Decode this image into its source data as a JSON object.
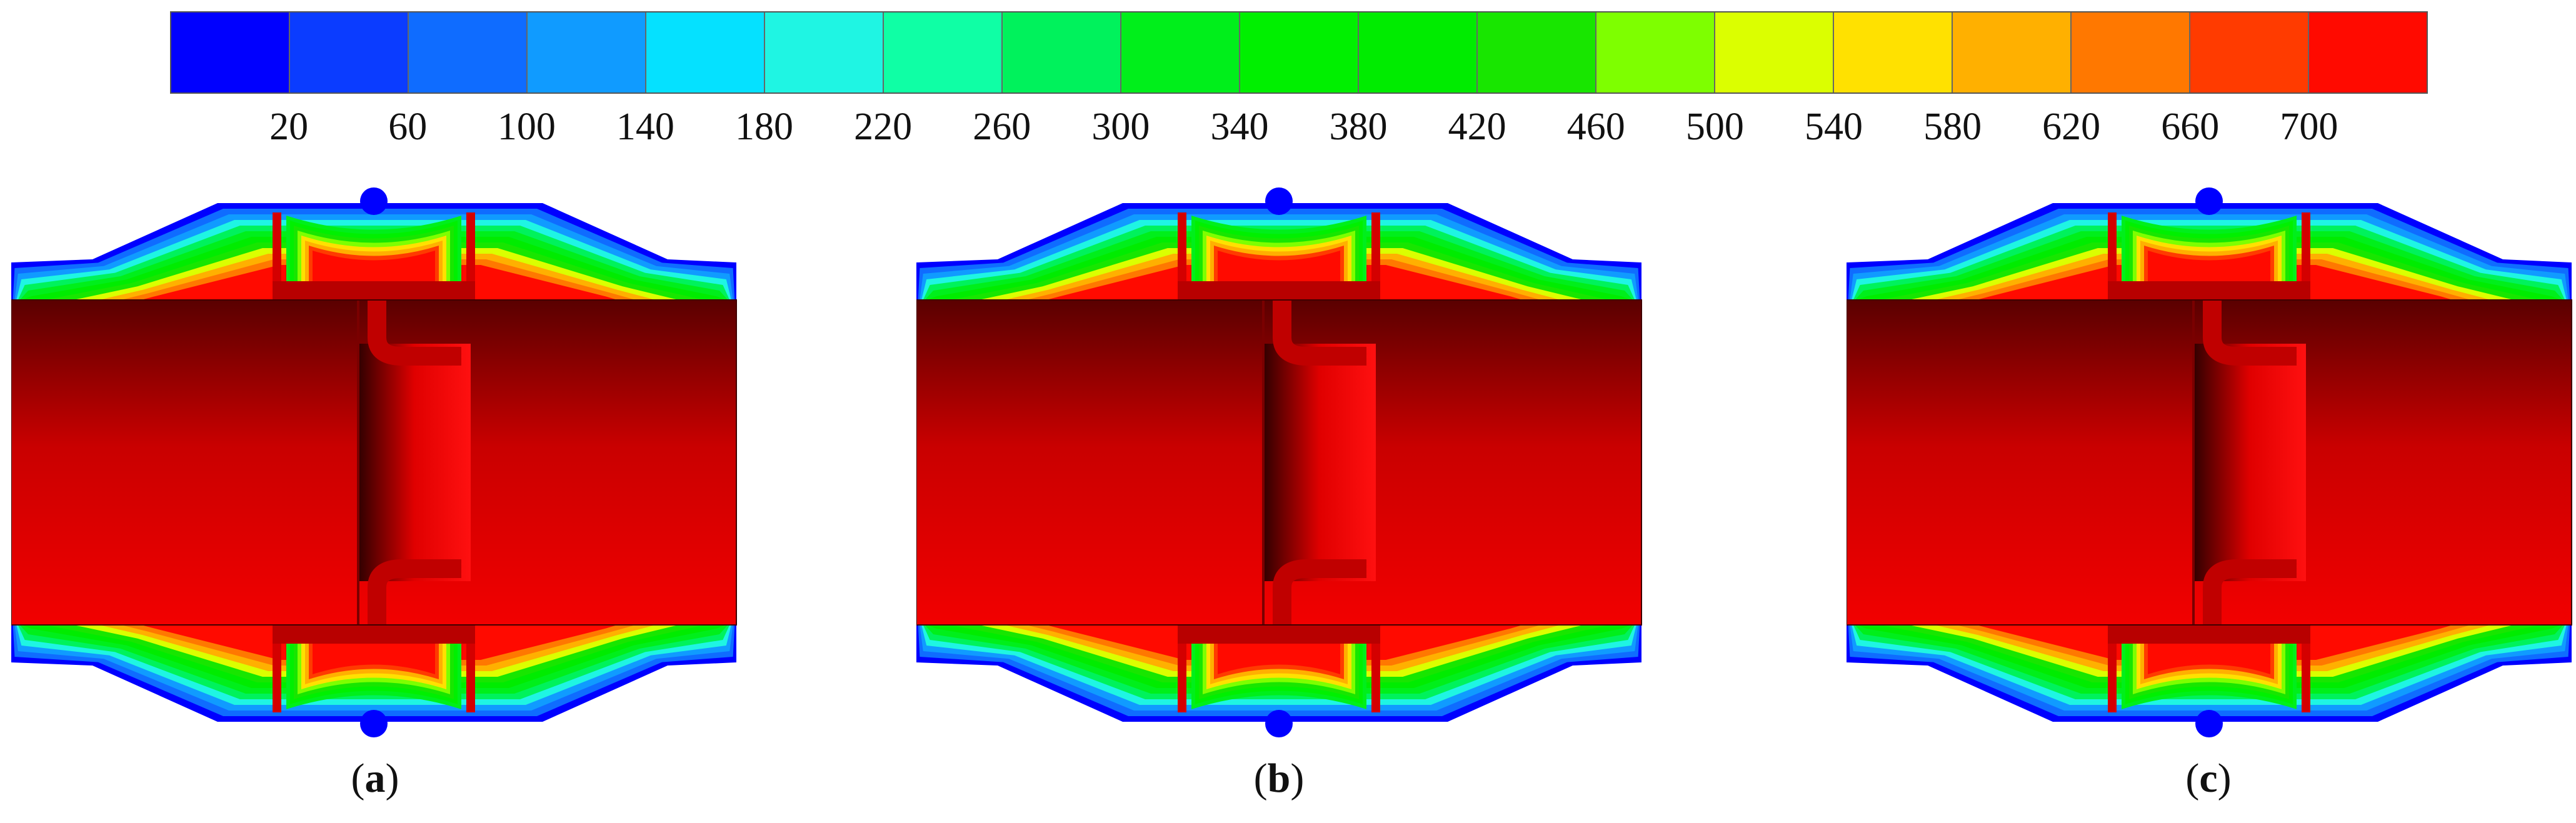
{
  "colorbar": {
    "colors": [
      "#0000ff",
      "#0b3cff",
      "#0f6cff",
      "#109bff",
      "#05e1ff",
      "#1ff5e3",
      "#0fffa5",
      "#00f25c",
      "#00ef1b",
      "#00f000",
      "#00ec00",
      "#18e600",
      "#7eff00",
      "#dbff00",
      "#ffe100",
      "#ffb000",
      "#ff7800",
      "#ff3b00",
      "#ff0a00"
    ],
    "tick_labels": [
      "20",
      "60",
      "100",
      "140",
      "180",
      "220",
      "260",
      "300",
      "340",
      "380",
      "420",
      "460",
      "500",
      "540",
      "580",
      "620",
      "660",
      "700"
    ]
  },
  "panels": [
    {
      "id": "a",
      "caption_open": "(",
      "caption_letter": "a",
      "caption_close": ")"
    },
    {
      "id": "b",
      "caption_open": "(",
      "caption_letter": "b",
      "caption_close": ")"
    },
    {
      "id": "c",
      "caption_open": "(",
      "caption_letter": "c",
      "caption_close": ")"
    }
  ]
}
